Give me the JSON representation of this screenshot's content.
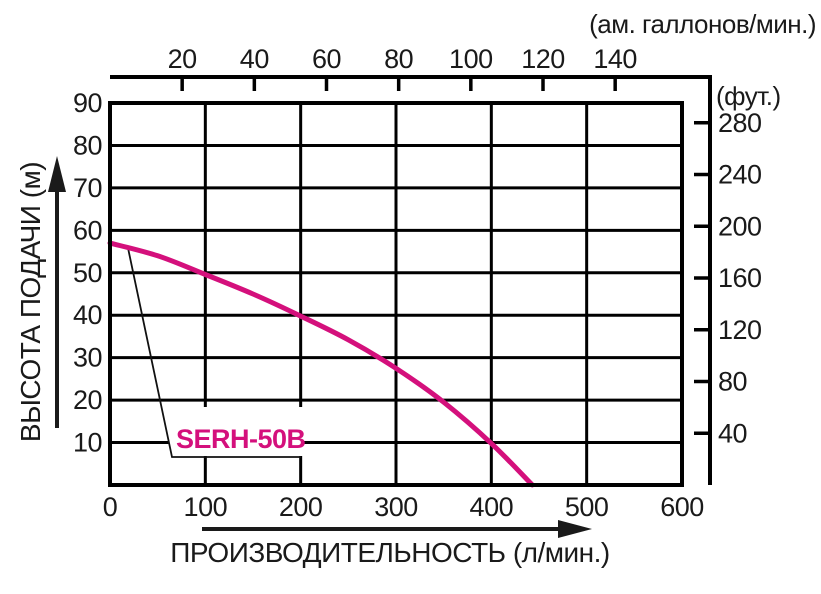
{
  "chart_data": {
    "type": "line",
    "title": "",
    "grid": true,
    "legend": "none",
    "curve_label": "SERH-50B",
    "series": [
      {
        "name": "SERH-50B",
        "color": "#d4107c",
        "points_l_min_vs_m": [
          [
            0,
            57
          ],
          [
            50,
            54
          ],
          [
            100,
            49.6
          ],
          [
            150,
            45
          ],
          [
            200,
            39.8
          ],
          [
            250,
            34.2
          ],
          [
            300,
            27.5
          ],
          [
            350,
            19.5
          ],
          [
            400,
            9.8
          ],
          [
            443,
            0
          ]
        ]
      }
    ],
    "x_axis_bottom": {
      "label": "ПРОИЗВОДИТЕЛЬНОСТЬ (л/мин.)",
      "unit": "л/мин.",
      "ticks": [
        0,
        100,
        200,
        300,
        400,
        500,
        600
      ],
      "range": [
        0,
        600
      ]
    },
    "x_axis_top": {
      "label": "(ам. галлонов/мин.)",
      "unit": "ам. галлонов/мин.",
      "ticks": [
        20,
        40,
        60,
        80,
        100,
        120,
        140
      ],
      "liters_per_gallon": 3.785
    },
    "y_axis_left": {
      "label": "ВЫСОТА ПОДАЧИ (м)",
      "unit": "м",
      "ticks": [
        10,
        20,
        30,
        40,
        50,
        60,
        70,
        80,
        90
      ],
      "range": [
        0,
        90
      ]
    },
    "y_axis_right": {
      "label": "(фут.)",
      "unit": "фут.",
      "ticks": [
        40,
        80,
        120,
        160,
        200,
        240,
        280
      ],
      "meters_per_foot": 0.3048
    }
  },
  "colors": {
    "curve": "#d4107c",
    "grid": "#000000",
    "frame": "#000000",
    "text": "#1a1a1a",
    "background": "#ffffff"
  }
}
